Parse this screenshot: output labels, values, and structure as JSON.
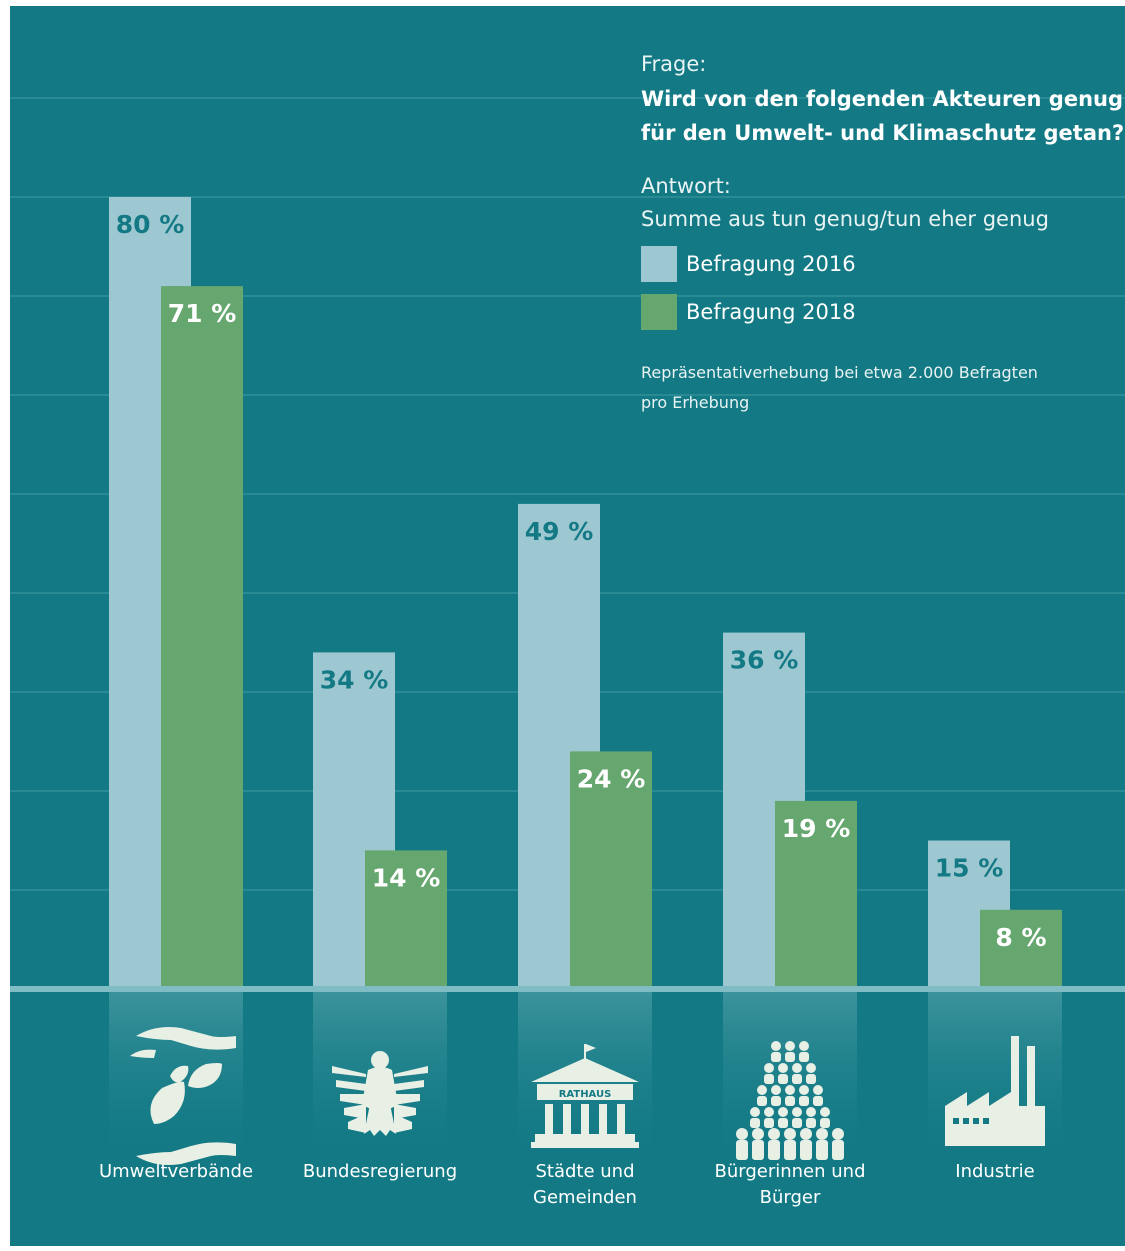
{
  "legend": {
    "question_label": "Frage:",
    "question_line1": "Wird von den folgenden Akteuren genug",
    "question_line2": "für den Umwelt- und Klimaschutz getan?",
    "answer_label": "Antwort:",
    "answer_text": "Summe aus tun genug/tun eher genug",
    "series_2016": "Befragung 2016",
    "series_2018": "Befragung 2018",
    "note_line1": "Repräsentativerhebung bei etwa 2.000 Befragten",
    "note_line2": "pro Erhebung"
  },
  "colors": {
    "background": "#137a85",
    "bar_2016": "#9ec8d1",
    "bar_2018": "#66a66f",
    "label_2016": "#137a85",
    "label_2018": "#ffffff",
    "gridline": "#3f9aa3",
    "baseline": "#7fbcc3",
    "icon": "#e8efe4"
  },
  "chart_data": {
    "type": "bar",
    "categories": [
      "Umweltverbände",
      "Bundesregierung",
      "Städte und Gemeinden",
      "Bürgerinnen und Bürger",
      "Industrie"
    ],
    "category_lines": [
      [
        "Umweltverbände"
      ],
      [
        "Bundesregierung"
      ],
      [
        "Städte und",
        "Gemeinden"
      ],
      [
        "Bürgerinnen und",
        "Bürger"
      ],
      [
        "Industrie"
      ]
    ],
    "series": [
      {
        "name": "Befragung 2016",
        "values": [
          80,
          34,
          49,
          36,
          15
        ]
      },
      {
        "name": "Befragung 2018",
        "values": [
          71,
          14,
          24,
          19,
          8
        ]
      }
    ],
    "value_suffix": " %",
    "ylim": [
      0,
      90
    ],
    "grid": true,
    "legend_position": "top-right",
    "icons": [
      "hands-leaves-icon",
      "federal-eagle-icon",
      "town-hall-icon",
      "people-group-icon",
      "factory-icon"
    ],
    "rathaus_text": "RATHAUS"
  }
}
